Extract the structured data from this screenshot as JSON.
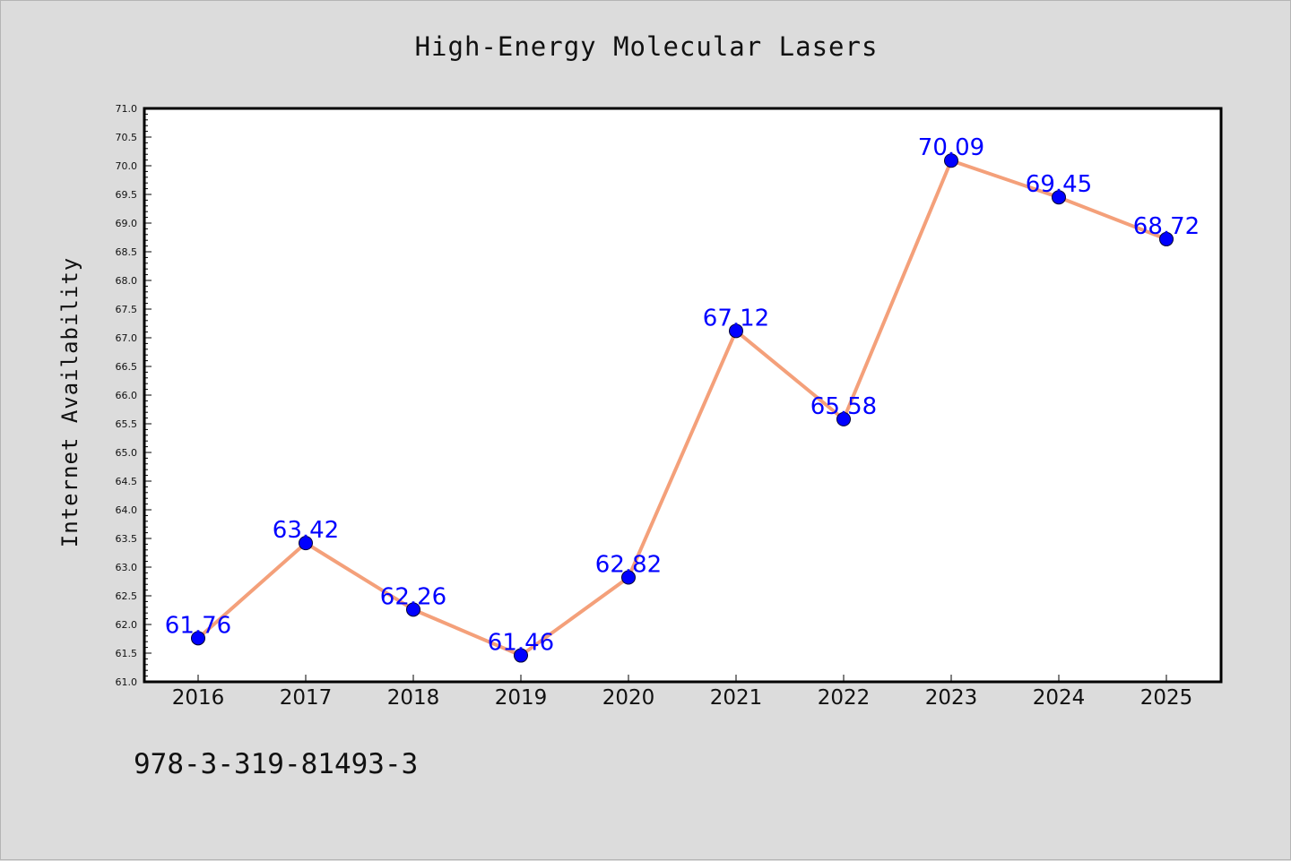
{
  "chart_data": {
    "type": "line",
    "title": "High-Energy Molecular Lasers",
    "xlabel": "",
    "ylabel": "Internet Availability",
    "categories": [
      "2016",
      "2017",
      "2018",
      "2019",
      "2020",
      "2021",
      "2022",
      "2023",
      "2024",
      "2025"
    ],
    "series": [
      {
        "values": [
          61.76,
          63.42,
          62.26,
          61.46,
          62.82,
          67.12,
          65.58,
          70.09,
          69.45,
          68.72
        ]
      }
    ],
    "data_labels": [
      "61.76",
      "63.42",
      "62.26",
      "61.46",
      "62.82",
      "67.12",
      "65.58",
      "70.09",
      "69.45",
      "68.72"
    ],
    "ylim": [
      61.0,
      71.0
    ],
    "yticks": [
      "61.0",
      "61.5",
      "62.0",
      "62.5",
      "63.0",
      "63.5",
      "64.0",
      "64.5",
      "65.0",
      "65.5",
      "66.0",
      "66.5",
      "67.0",
      "67.5",
      "68.0",
      "68.5",
      "69.0",
      "69.5",
      "70.0",
      "70.5",
      "71.0"
    ],
    "grid": false,
    "legend": "none",
    "colors": {
      "line": "#f4a07a",
      "marker": "#0000ff",
      "label": "#0000ff",
      "axes": "#000000"
    }
  },
  "footer": {
    "code": "978-3-319-81493-3"
  }
}
